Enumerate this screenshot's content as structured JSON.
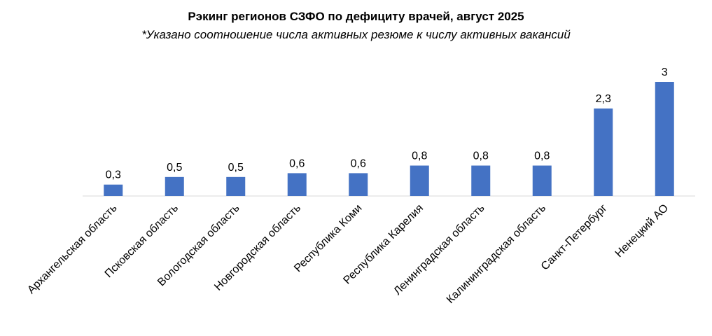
{
  "chart_data": {
    "type": "bar",
    "title": "Рэкинг регионов СЗФО по дефициту врачей, август 2025",
    "subtitle": "*Указано соотношение числа активных резюме к числу активных вакансий",
    "categories": [
      "Архангельская область",
      "Псковская область",
      "Вологодская область",
      "Новгородская область",
      "Республика Коми",
      "Республика Карелия",
      "Ленинградская область",
      "Калининградская  область",
      "Санкт-Петербург",
      "Ненецкий АО"
    ],
    "values": [
      0.3,
      0.5,
      0.5,
      0.6,
      0.6,
      0.8,
      0.8,
      0.8,
      2.3,
      3
    ],
    "value_labels": [
      "0,3",
      "0,5",
      "0,5",
      "0,6",
      "0,6",
      "0,8",
      "0,8",
      "0,8",
      "2,3",
      "3"
    ],
    "ylim": [
      0,
      3
    ],
    "grid": false,
    "bar_color": "#4472C4"
  }
}
